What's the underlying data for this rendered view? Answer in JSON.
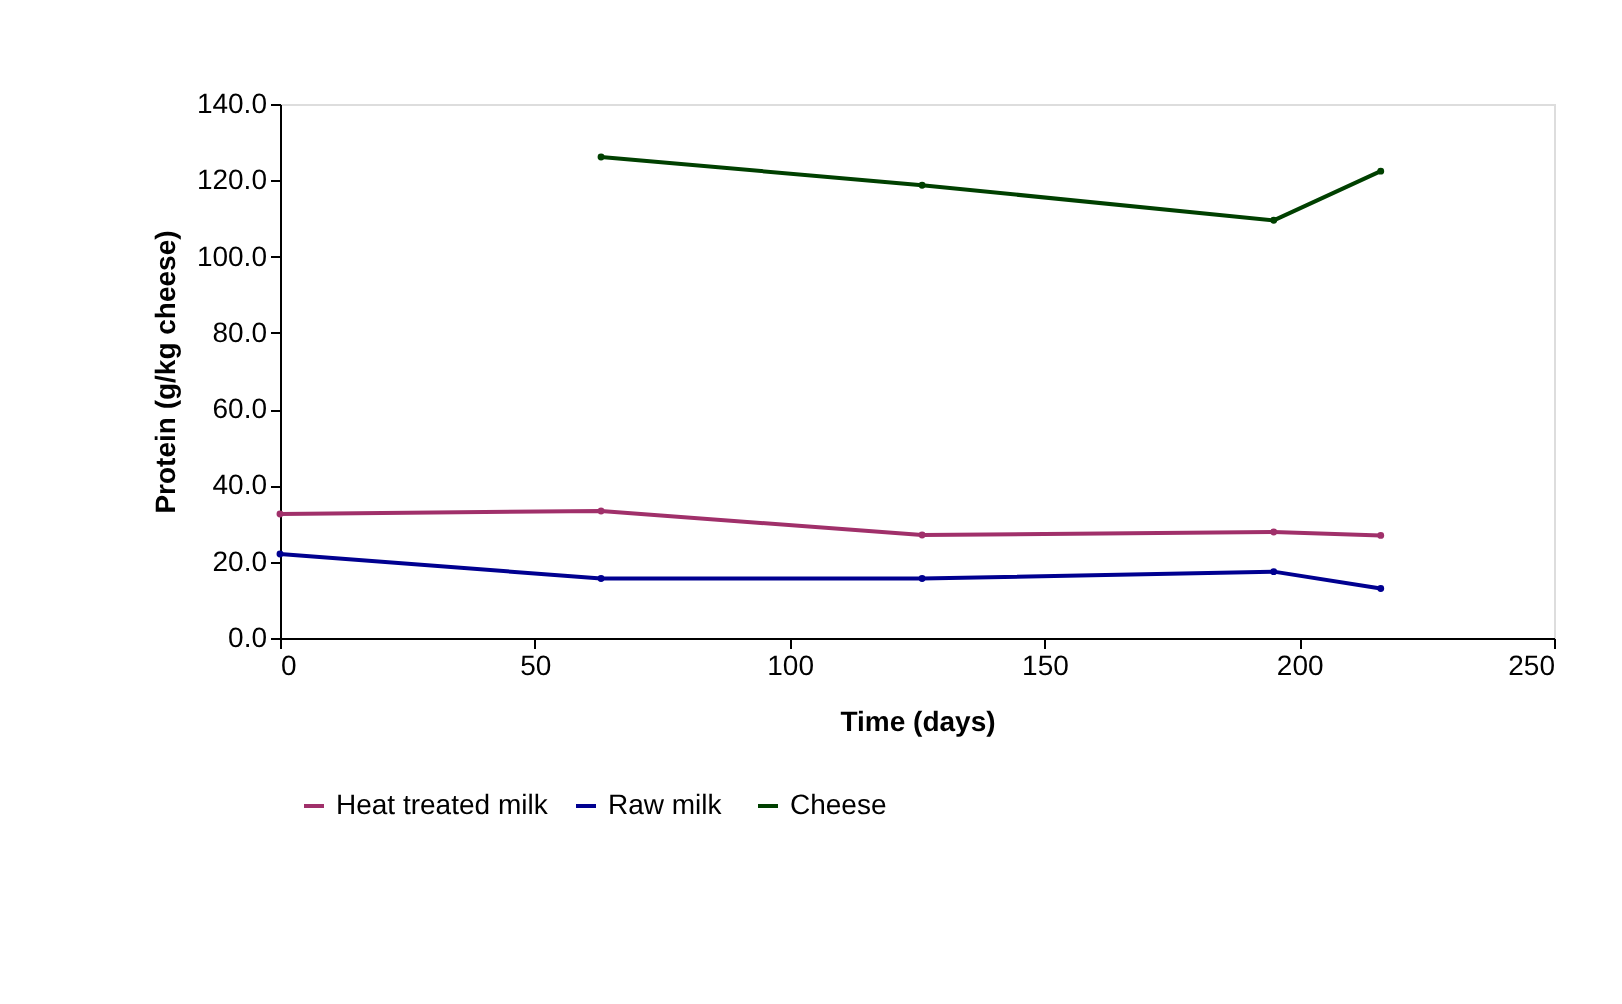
{
  "chart_data": {
    "type": "line",
    "xlabel": "Time (days)",
    "ylabel": "Protein (g/kg cheese)",
    "xlim": [
      0,
      250
    ],
    "xticks": [
      0,
      50,
      100,
      150,
      200,
      250
    ],
    "ylim": [
      0,
      140
    ],
    "yticks": [
      {
        "value": 0,
        "label": "0.0"
      },
      {
        "value": 20,
        "label": "20.0"
      },
      {
        "value": 40,
        "label": "40.0"
      },
      {
        "value": 60,
        "label": "60.0"
      },
      {
        "value": 80,
        "label": "80.0"
      },
      {
        "value": 100,
        "label": "100.0"
      },
      {
        "value": 120,
        "label": "120.0"
      },
      {
        "value": 140,
        "label": "140.0"
      }
    ],
    "grid": false,
    "legend": "bottom",
    "marker": "circle",
    "line_style": "solid",
    "series": [
      {
        "name": "Heat treated milk",
        "color": "#a0306a",
        "x": [
          0,
          63,
          126,
          195,
          216
        ],
        "values": [
          32.5,
          33.3,
          27.0,
          27.8,
          26.9
        ]
      },
      {
        "name": "Raw  milk",
        "color": "#000090",
        "x": [
          0,
          63,
          126,
          195,
          216
        ],
        "values": [
          22.0,
          15.6,
          15.6,
          17.4,
          13.0
        ]
      },
      {
        "name": "Cheese",
        "color": "#004000",
        "x": [
          63,
          126,
          195,
          216
        ],
        "values": [
          126.1,
          118.7,
          109.5,
          122.4
        ]
      }
    ]
  }
}
